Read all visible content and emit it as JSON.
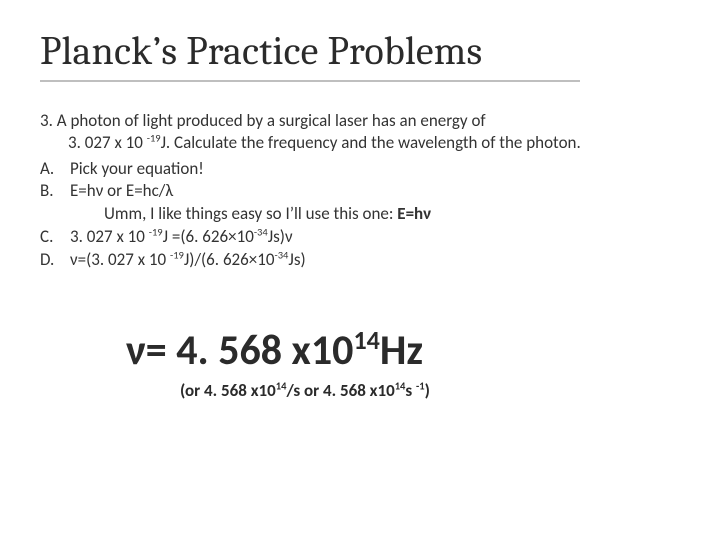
{
  "title": "Planck’s Practice Problems",
  "problem": {
    "number": "3.",
    "stem_line1": "A photon of light produced by a surgical laser has an energy of",
    "stem_line2_before_sup": "3. 027 x 10 ",
    "stem_line2_sup": "-19",
    "stem_line2_after_sup": "J. Calculate the frequency and the wavelength of the photon."
  },
  "steps": {
    "A": {
      "letter": "A.",
      "text": "Pick your equation!"
    },
    "B": {
      "letter": "B.",
      "text": "E=hν or E=hc/λ"
    },
    "B_extra_before_bold": "Umm, I like things easy so I’ll use this one: ",
    "B_extra_bold": "E=hν",
    "C": {
      "letter": "C.",
      "pre1": "3. 027 x 10 ",
      "sup1": "-19",
      "mid": "J =(6. 626×10",
      "sup2": "-34",
      "post": "Js)ν"
    },
    "D": {
      "letter": "D.",
      "pre1": "ν=(3. 027 x 10 ",
      "sup1": "-19",
      "mid": "J)/(6. 626×10",
      "sup2": "-34",
      "post": "Js)"
    }
  },
  "answer": {
    "main_pre": "ν= 4. 568 x10",
    "main_sup": "14",
    "main_post": "Hz",
    "sub_pre": "(or 4. 568 x10",
    "sub_sup1": "14",
    "sub_mid": "/s   or 4. 568 x10",
    "sub_sup2": "14",
    "sub_mid2": "s ",
    "sub_sup3": "-1",
    "sub_post": ")"
  },
  "colors": {
    "text": "#333333",
    "title": "#2b2b2b",
    "underline": "#bfbfbf",
    "background": "#ffffff"
  }
}
